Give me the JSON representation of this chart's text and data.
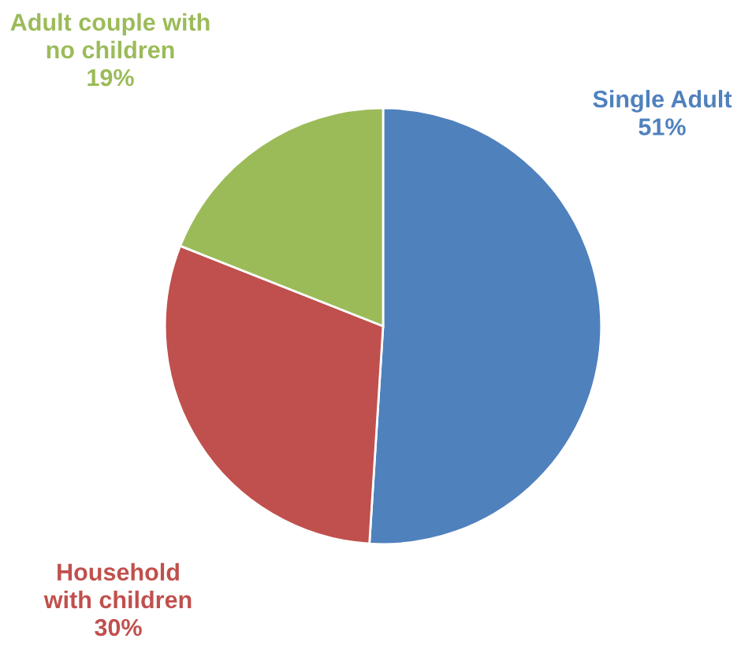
{
  "chart_data": {
    "type": "pie",
    "categories": [
      "Single Adult",
      "Household with children",
      "Adult couple with no children"
    ],
    "values": [
      51,
      30,
      19
    ],
    "colors": [
      "#4f81bd",
      "#c0504d",
      "#9bbb59"
    ],
    "value_labels": [
      "51%",
      "30%",
      "19%"
    ]
  }
}
